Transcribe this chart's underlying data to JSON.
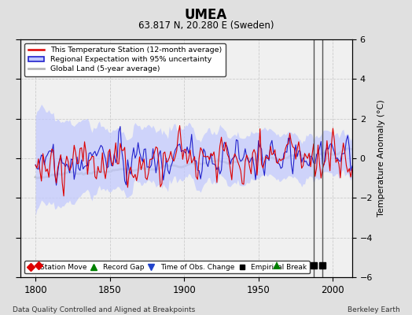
{
  "title": "UMEA",
  "subtitle": "63.817 N, 20.280 E (Sweden)",
  "xlabel_left": "Data Quality Controlled and Aligned at Breakpoints",
  "xlabel_right": "Berkeley Earth",
  "ylabel_right": "Temperature Anomaly (°C)",
  "xlim": [
    1790,
    2013
  ],
  "ylim": [
    -6,
    6
  ],
  "yticks": [
    -6,
    -4,
    -2,
    0,
    2,
    4,
    6
  ],
  "xticks": [
    1800,
    1850,
    1900,
    1950,
    2000
  ],
  "bg_color": "#e0e0e0",
  "plot_bg_color": "#f0f0f0",
  "station_color": "#dd0000",
  "regional_color": "#2222cc",
  "regional_fill_color": "#c0c8ff",
  "global_color": "#b8b8b8",
  "record_gap_x": 1962,
  "empirical_break_x1": 1987,
  "empirical_break_x2": 1993,
  "station_move_x": 1800,
  "seed": 17
}
